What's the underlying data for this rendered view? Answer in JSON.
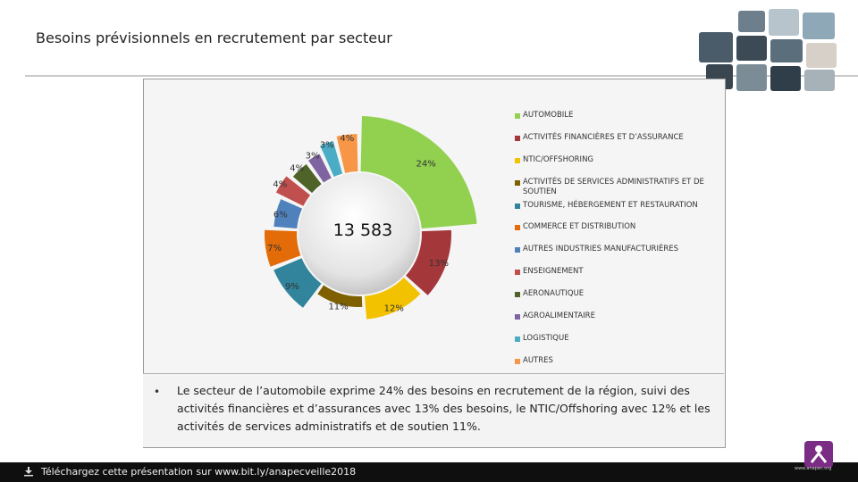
{
  "header": {
    "title": "Besoins prévisionnels en recrutement par secteur"
  },
  "summary": {
    "bullet": "•",
    "text": "Le secteur de l’automobile exprime 24% des besoins en recrutement de la région, suivi des activités financières et d’assurances avec 13% des besoins, le NTIC/Offshoring avec 12% et les activités de services administratifs et de soutien 11%."
  },
  "footer": {
    "text": "Téléchargez cette présentation sur  www.bit.ly/anapecveille2018",
    "icon": "download-icon"
  },
  "logo": {
    "text": "www.anapec.org",
    "icon": "anapec-logo"
  },
  "chart_data": {
    "type": "pie",
    "style": "donut-exploded",
    "center_label": "13 583",
    "categories": [
      "AUTOMOBILE",
      "ACTIVITÉS FINANCIÈRES ET D’ASSURANCE",
      "NTIC/OFFSHORING",
      "ACTIVITÉS DE SERVICES ADMINISTRATIFS ET DE SOUTIEN",
      "TOURISME, HÉBERGEMENT ET RESTAURATION",
      "COMMERCE ET DISTRIBUTION",
      "AUTRES INDUSTRIES MANUFACTURIÈRES",
      "ENSEIGNEMENT",
      "AERONAUTIQUE",
      "AGROALIMENTAIRE",
      "LOGISTIQUE",
      "AUTRES"
    ],
    "values": [
      24,
      13,
      12,
      11,
      9,
      7,
      6,
      4,
      4,
      3,
      3,
      4
    ],
    "labels": [
      "24%",
      "13%",
      "12%",
      "11%",
      "9%",
      "7%",
      "6%",
      "4%",
      "4%",
      "3%",
      "3%",
      "4%"
    ],
    "colors": [
      "#92d050",
      "#a4373a",
      "#f2c200",
      "#7f6000",
      "#31849b",
      "#e36c09",
      "#4f81bd",
      "#c0504d",
      "#4f6228",
      "#8064a2",
      "#4bacc6",
      "#f79646"
    ],
    "legend_position": "right"
  }
}
